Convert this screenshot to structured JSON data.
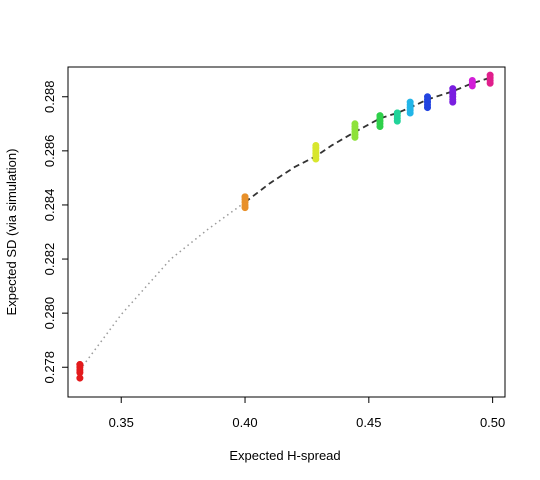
{
  "chart_data": {
    "type": "scatter",
    "title": "",
    "xlabel": "Expected H-spread",
    "ylabel": "Expected SD (via simulation)",
    "xlim": [
      0.3285,
      0.505
    ],
    "ylim": [
      0.2769,
      0.2891
    ],
    "x_ticks": [
      {
        "value": 0.35,
        "label": "0.35"
      },
      {
        "value": 0.4,
        "label": "0.40"
      },
      {
        "value": 0.45,
        "label": "0.45"
      },
      {
        "value": 0.5,
        "label": "0.50"
      }
    ],
    "y_ticks": [
      {
        "value": 0.278,
        "label": "0.278"
      },
      {
        "value": 0.28,
        "label": "0.280"
      },
      {
        "value": 0.282,
        "label": "0.282"
      },
      {
        "value": 0.284,
        "label": "0.284"
      },
      {
        "value": 0.286,
        "label": "0.286"
      },
      {
        "value": 0.288,
        "label": "0.288"
      }
    ],
    "grid": false,
    "series": [
      {
        "x": 0.3333,
        "color": "#e31a1c",
        "y": [
          0.2776,
          0.2778,
          0.2779,
          0.278,
          0.2781,
          0.2781
        ]
      },
      {
        "x": 0.4,
        "color": "#e8902a",
        "y": [
          0.2839,
          0.284,
          0.2841,
          0.2842,
          0.2843,
          0.2843
        ]
      },
      {
        "x": 0.4286,
        "color": "#d8e62e",
        "y": [
          0.2857,
          0.2858,
          0.2859,
          0.286,
          0.2861,
          0.2862
        ]
      },
      {
        "x": 0.4444,
        "color": "#8ee23a",
        "y": [
          0.2865,
          0.2866,
          0.2867,
          0.2868,
          0.2869,
          0.287
        ]
      },
      {
        "x": 0.4545,
        "color": "#2ed04a",
        "y": [
          0.2869,
          0.287,
          0.2871,
          0.2872,
          0.2873,
          0.2873
        ]
      },
      {
        "x": 0.4615,
        "color": "#22d49a",
        "y": [
          0.2871,
          0.2872,
          0.2873,
          0.2874,
          0.2874
        ]
      },
      {
        "x": 0.4667,
        "color": "#22b5e8",
        "y": [
          0.2874,
          0.2875,
          0.2876,
          0.2877,
          0.2878
        ]
      },
      {
        "x": 0.4737,
        "color": "#2244e0",
        "y": [
          0.2876,
          0.2877,
          0.2878,
          0.2879,
          0.288
        ]
      },
      {
        "x": 0.4839,
        "color": "#7a1fe0",
        "y": [
          0.2878,
          0.2879,
          0.288,
          0.2881,
          0.2882,
          0.2883
        ]
      },
      {
        "x": 0.4918,
        "color": "#d21fd8",
        "y": [
          0.2884,
          0.2885,
          0.2886
        ]
      },
      {
        "x": 0.499,
        "color": "#e01f8c",
        "y": [
          0.2885,
          0.2886,
          0.2887,
          0.2888
        ]
      }
    ],
    "curve": [
      [
        0.3333,
        0.2779
      ],
      [
        0.35,
        0.27995
      ],
      [
        0.37,
        0.282
      ],
      [
        0.385,
        0.2831
      ],
      [
        0.4,
        0.2841
      ],
      [
        0.41,
        0.2848
      ],
      [
        0.42,
        0.2854
      ],
      [
        0.4286,
        0.2858
      ],
      [
        0.435,
        0.2862
      ],
      [
        0.4444,
        0.2867
      ],
      [
        0.4545,
        0.2872
      ],
      [
        0.4615,
        0.2874
      ],
      [
        0.4667,
        0.2876
      ],
      [
        0.4737,
        0.2879
      ],
      [
        0.4839,
        0.2882
      ],
      [
        0.4918,
        0.2885
      ],
      [
        0.499,
        0.2887
      ]
    ],
    "curve_split_x": 0.4
  }
}
